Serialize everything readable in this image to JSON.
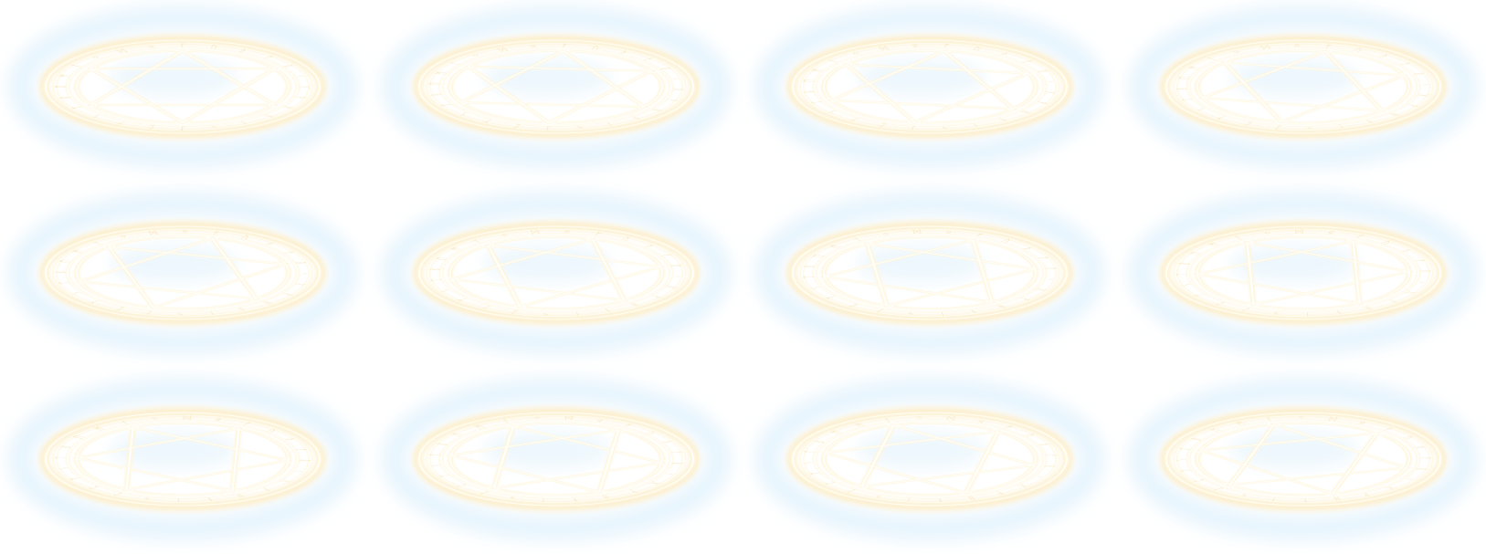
{
  "sprite_sheet": {
    "columns": 4,
    "rows": 3,
    "frame_count": 12,
    "background": "#ffffff",
    "colors": {
      "outer_glow": "#e6f4fd",
      "inner_glow": "#edf7fd",
      "ring_glow": "#fcefcf",
      "ring_line": "#fff6dc",
      "ring_core": "#ffffff",
      "rune": "#f7e3b3"
    },
    "frames": [
      {
        "id": 1,
        "rotation": 0
      },
      {
        "id": 2,
        "rotation": 4
      },
      {
        "id": 3,
        "rotation": 8
      },
      {
        "id": 4,
        "rotation": 12
      },
      {
        "id": 5,
        "rotation": 16
      },
      {
        "id": 6,
        "rotation": 20
      },
      {
        "id": 7,
        "rotation": 24
      },
      {
        "id": 8,
        "rotation": 28
      },
      {
        "id": 9,
        "rotation": 32
      },
      {
        "id": 10,
        "rotation": 36
      },
      {
        "id": 11,
        "rotation": 40
      },
      {
        "id": 12,
        "rotation": 44
      }
    ]
  }
}
